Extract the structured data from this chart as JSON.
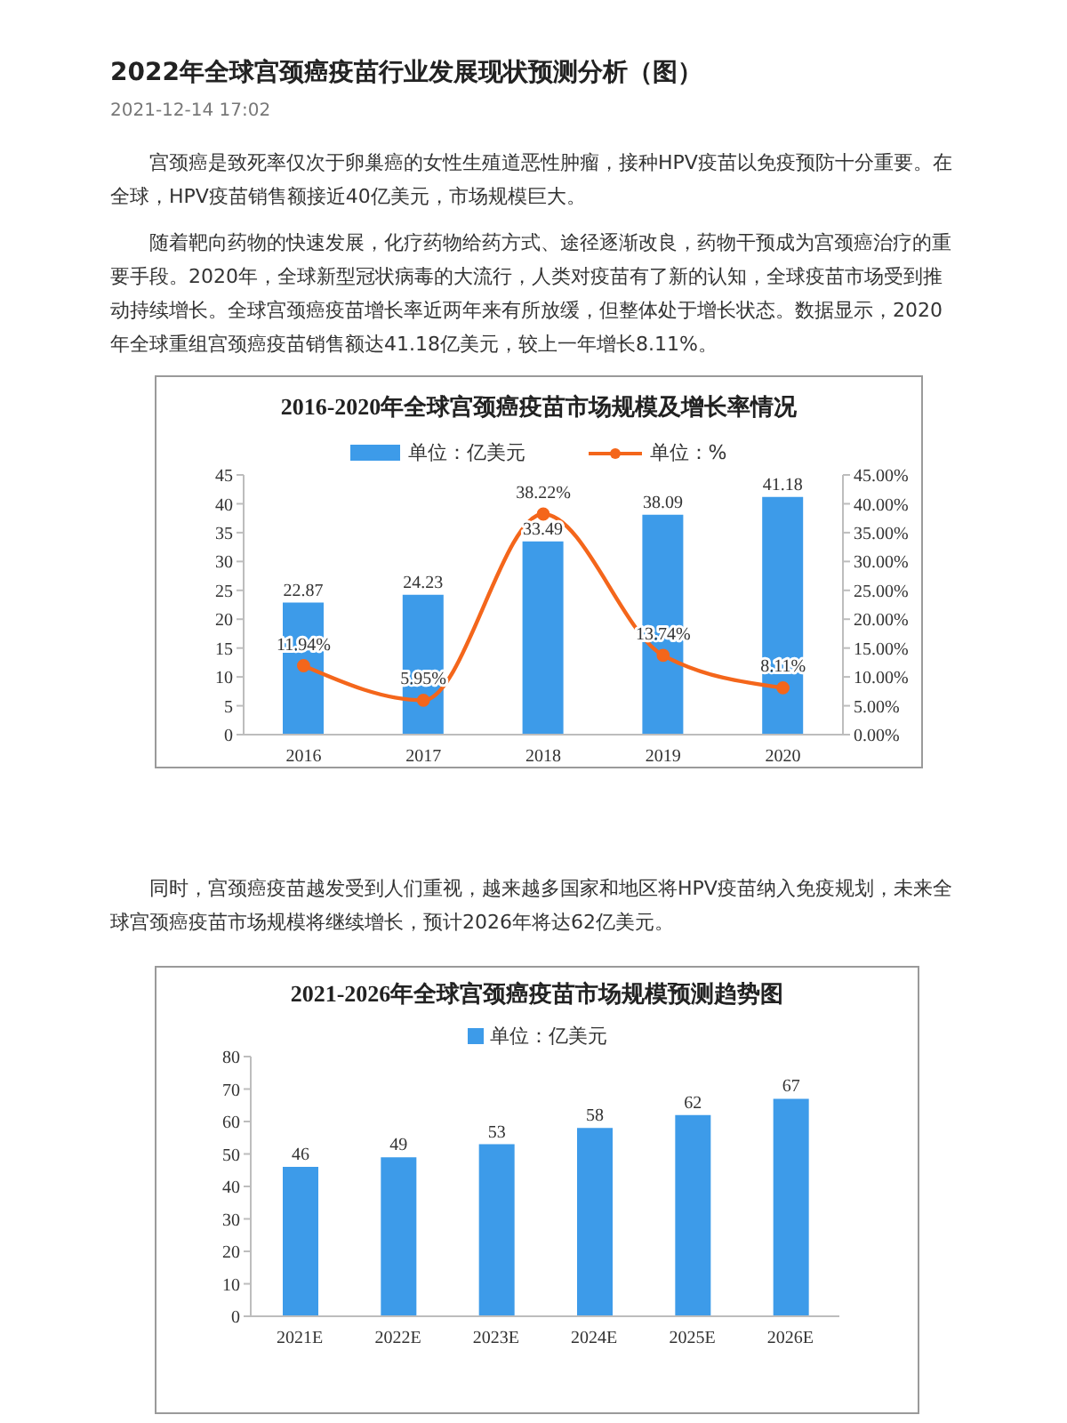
{
  "chart_data": [
    {
      "type": "bar",
      "title": "2016-2020年全球宫颈癌疫苗市场规模及增长率情况",
      "annotations": [
        "2022年全球宫颈癌疫苗行业发展现状预测分析（图）",
        "2021-12-14 17:02",
        "宫颈癌是致死率仅次于卵巢癌的女性生殖道恶性肿瘤，接种HPV疫苗以免疫预防十分重要。在全球，HPV疫苗销售额接近40亿美元，市场规模巨大。",
        "随着靶向药物的快速发展，化疗药物给药方式、途径逐渐改良，药物干预成为宫颈癌治疗的重要手段。2020年，全球新型冠状病毒的大流行，人类对疫苗有了新的认知，全球疫苗市场受到推动持续增长。全球宫颈癌疫苗增长率近两年来有所放缓，但整体处于增长状态。数据显示，2020年全球重组宫颈癌疫苗销售额达41.18亿美元，较上一年增长8.11%。"
      ],
      "categories": [
        "2016",
        "2017",
        "2018",
        "2019",
        "2020"
      ],
      "series": [
        {
          "name": "单位：亿美元",
          "color": "#3d9be9",
          "values": [
            22.87,
            24.23,
            33.49,
            38.09,
            41.18
          ],
          "value_labels": [
            "22.87",
            "24.23",
            "33.49",
            "38.09",
            "41.18"
          ]
        },
        {
          "name": "单位：%",
          "type": "line",
          "axis": "y2",
          "color": "#f4661b",
          "values": [
            11.94,
            5.95,
            38.22,
            13.74,
            8.11
          ],
          "value_labels": [
            "11.94%",
            "5.95%",
            "38.22%",
            "13.74%",
            "8.11%"
          ]
        }
      ],
      "ylim": [
        0,
        45
      ],
      "yticks": [
        0,
        5,
        10,
        15,
        20,
        25,
        30,
        35,
        40,
        45
      ],
      "y2lim": [
        0,
        45
      ],
      "y2ticks": [
        {
          "value": 0,
          "label": "0.00%"
        },
        {
          "value": 5,
          "label": "5.00%"
        },
        {
          "value": 10,
          "label": "10.00%"
        },
        {
          "value": 15,
          "label": "15.00%"
        },
        {
          "value": 20,
          "label": "20.00%"
        },
        {
          "value": 25,
          "label": "25.00%"
        },
        {
          "value": 30,
          "label": "30.00%"
        },
        {
          "value": 35,
          "label": "35.00%"
        },
        {
          "value": 40,
          "label": "40.00%"
        },
        {
          "value": 45,
          "label": "45.00%"
        }
      ],
      "legend": "top",
      "marker": "circle"
    },
    {
      "type": "bar",
      "title": "2021-2026年全球宫颈癌疫苗市场规模预测趋势图",
      "annotations": [
        "同时，宫颈癌疫苗越发受到人们重视，越来越多国家和地区将HPV疫苗纳入免疫规划，未来全球宫颈癌疫苗市场规模将继续增长，预计2026年将达62亿美元。"
      ],
      "categories": [
        "2021E",
        "2022E",
        "2023E",
        "2024E",
        "2025E",
        "2026E"
      ],
      "series": [
        {
          "name": "单位：亿美元",
          "color": "#3d9be9",
          "values": [
            46,
            49,
            53,
            58,
            62,
            67
          ]
        }
      ],
      "ylim": [
        0,
        80
      ],
      "yticks": [
        0,
        10,
        20,
        30,
        40,
        50,
        60,
        70,
        80
      ],
      "data_labels": true,
      "legend": "top"
    }
  ]
}
